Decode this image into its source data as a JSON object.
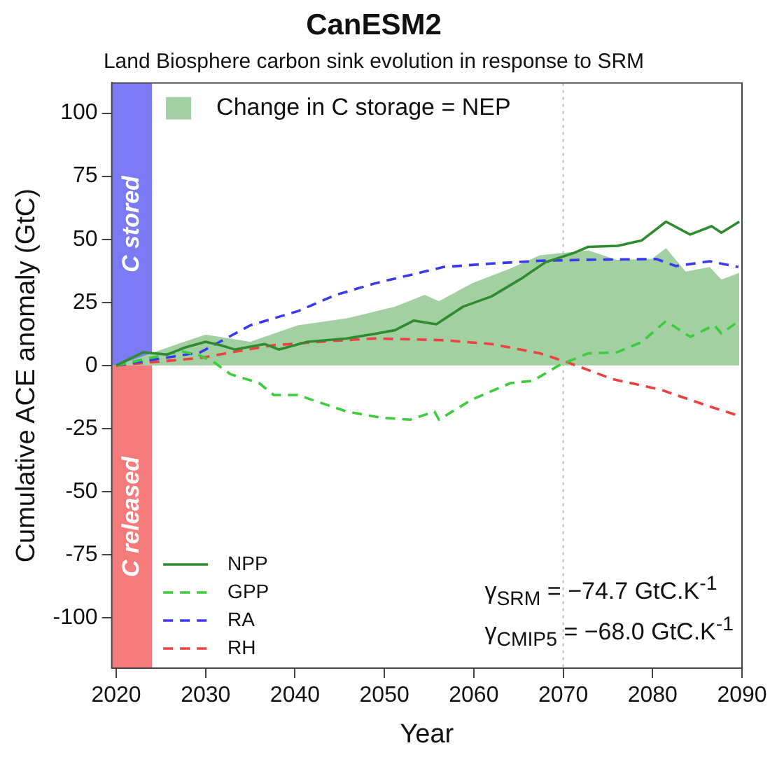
{
  "chart_data": {
    "type": "line",
    "title": "CanESM2",
    "subtitle": "Land Biosphere carbon sink evolution in response to SRM",
    "xlabel": "Year",
    "ylabel": "Cumulative ACE anomaly (GtC)",
    "xlim": [
      2019.5,
      2090
    ],
    "xticks": [
      2020,
      2030,
      2040,
      2050,
      2060,
      2070,
      2080,
      2090
    ],
    "ylim": [
      -120,
      112
    ],
    "yticks": [
      -100,
      -75,
      -50,
      -25,
      0,
      25,
      50,
      75,
      100
    ],
    "grid": false,
    "legend": "left",
    "marker": "none",
    "series": [
      {
        "name": "Change in C storage = NEP",
        "type": "area",
        "color": "#a3d0a3",
        "x": [
          2020,
          2027.6,
          2030,
          2035,
          2040.3,
          2045.8,
          2051.2,
          2054.5,
          2056.1,
          2059.8,
          2064.1,
          2067.4,
          2072.8,
          2076,
          2079.9,
          2081.5,
          2083.7,
          2086.4,
          2087.7,
          2089.7
        ],
        "values": [
          0,
          9.4,
          12.2,
          9.4,
          15.9,
          18.7,
          23.3,
          28,
          25.5,
          32.6,
          38.5,
          43.7,
          45.6,
          41.9,
          42.2,
          46.5,
          37.2,
          39,
          34,
          36.7
        ]
      },
      {
        "name": "NPP",
        "type": "line",
        "color": "#2e8b2e",
        "line_style": "solid",
        "x": [
          2020,
          2023,
          2025.7,
          2027.6,
          2030,
          2031.7,
          2033.3,
          2036.6,
          2038.2,
          2041.4,
          2045.8,
          2049,
          2051.2,
          2053.3,
          2055.8,
          2058.8,
          2062,
          2065.3,
          2068,
          2071.2,
          2072.8,
          2076.1,
          2078.8,
          2081.5,
          2084.2,
          2086.6,
          2087.7,
          2089.7
        ],
        "values": [
          0,
          5.2,
          4.3,
          7,
          9.4,
          8,
          6.3,
          8.5,
          6.3,
          9.4,
          10.7,
          12.6,
          14,
          17.8,
          16.3,
          23.3,
          27.4,
          34.4,
          40.9,
          44.6,
          47,
          47.4,
          49.6,
          57,
          51.9,
          55.2,
          52.6,
          57
        ]
      },
      {
        "name": "GPP",
        "type": "line",
        "color": "#3ccc3c",
        "line_style": "dashed",
        "x": [
          2020,
          2027.3,
          2029.4,
          2031,
          2032.8,
          2036,
          2037.6,
          2040.3,
          2045.8,
          2049.6,
          2052.9,
          2055.6,
          2056.1,
          2059.8,
          2064.1,
          2066.6,
          2069.5,
          2072.8,
          2076,
          2078.8,
          2081.5,
          2084.2,
          2086.9,
          2087.7,
          2089.7
        ],
        "values": [
          0,
          5.7,
          3.9,
          1.1,
          -3.5,
          -7,
          -11.7,
          -11.7,
          -18.3,
          -20.7,
          -21.5,
          -18.3,
          -21.5,
          -13.5,
          -7,
          -6.1,
          0,
          4.8,
          5.2,
          9.3,
          17.6,
          11.3,
          16,
          12.6,
          17.8
        ]
      },
      {
        "name": "RA",
        "type": "line",
        "color": "#3a3af0",
        "line_style": "dashed",
        "x": [
          2020,
          2029.4,
          2035,
          2040.3,
          2044.6,
          2049,
          2053.9,
          2056.6,
          2062,
          2067.4,
          2072.8,
          2080.4,
          2082.6,
          2086.4,
          2089.6
        ],
        "values": [
          0,
          5.2,
          15.9,
          21.5,
          28,
          32.6,
          36.7,
          39,
          40.4,
          41.5,
          41.9,
          42.2,
          39.4,
          41.3,
          39
        ]
      },
      {
        "name": "RH",
        "type": "line",
        "color": "#f04040",
        "line_style": "dashed",
        "x": [
          2020,
          2029.4,
          2037.5,
          2044.6,
          2049,
          2056.6,
          2062,
          2067.4,
          2070.6,
          2075.5,
          2080.9,
          2086.4,
          2089.7
        ],
        "values": [
          0,
          3,
          8,
          9.8,
          10.7,
          10,
          8.5,
          4.8,
          1.1,
          -5.4,
          -9.6,
          -16.3,
          -20
        ]
      }
    ],
    "bands": [
      {
        "axis": "x",
        "from": 2019.5,
        "to": 2024,
        "label": "C stored",
        "color": "#7b7bf5"
      },
      {
        "axis": "x",
        "from": 2019.5,
        "to": 2024,
        "label": "C released",
        "color": "#f57a7a"
      }
    ],
    "ref_lines": [
      {
        "axis": "x",
        "value": 2070,
        "color": "#bbbbbb",
        "line_style": "dotted"
      }
    ],
    "annotations": [
      "γ$_{SRM}$ = −74.7 GtC.K$^{-1}$",
      "γ$_{CMIP5}$ = −68.0 GtC.K$^{-1}$"
    ]
  }
}
